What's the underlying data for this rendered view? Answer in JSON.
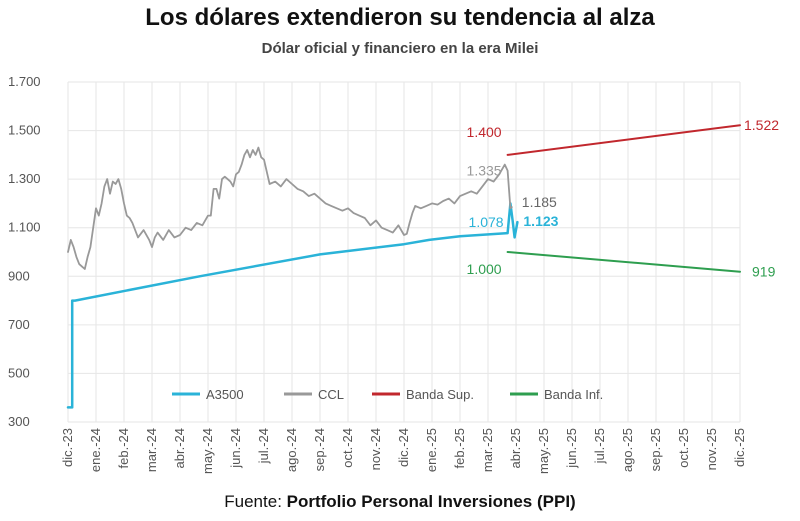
{
  "title": "Los dólares extendieron su tendencia al alza",
  "subtitle": "Dólar oficial y financiero en la era Milei",
  "source": {
    "prefix": "Fuente: ",
    "name": "Portfolio Personal Inversiones (PPI)"
  },
  "chart_data": {
    "type": "line",
    "title": "Los dólares extendieron su tendencia al alza",
    "subtitle": "Dólar oficial y financiero en la era Milei",
    "ylim": [
      300,
      1700
    ],
    "yticks": [
      300,
      500,
      700,
      900,
      1100,
      1300,
      1500,
      1700
    ],
    "ytick_labels": [
      "300",
      "500",
      "700",
      "900",
      "1.100",
      "1.300",
      "1.500",
      "1.700"
    ],
    "x_categories": [
      "dic.-23",
      "ene.-24",
      "feb.-24",
      "mar.-24",
      "abr.-24",
      "may.-24",
      "jun.-24",
      "jul.-24",
      "ago.-24",
      "sep.-24",
      "oct.-24",
      "nov.-24",
      "dic.-24",
      "ene.-25",
      "feb.-25",
      "mar.-25",
      "abr.-25",
      "may.-25",
      "jun.-25",
      "jul.-25",
      "ago.-25",
      "sep.-25",
      "oct.-25",
      "nov.-25",
      "dic.-25"
    ],
    "grid": true,
    "legend_position": "bottom-center",
    "series": [
      {
        "name": "A3500",
        "color": "#2ab3d8",
        "width": 2.5,
        "x": [
          0,
          0.15,
          0.15,
          0.25,
          4.7,
          9.0,
          12.0,
          12.9,
          14.0,
          15.7,
          15.8,
          15.88,
          15.95,
          16.05
        ],
        "y": [
          360,
          360,
          800,
          800,
          900,
          990,
          1032,
          1050,
          1065,
          1078,
          1200,
          1130,
          1060,
          1123
        ]
      },
      {
        "name": "CCL",
        "color": "#999999",
        "width": 1.8,
        "x": [
          0,
          0.1,
          0.2,
          0.3,
          0.4,
          0.5,
          0.6,
          0.7,
          0.8,
          0.9,
          1.0,
          1.1,
          1.2,
          1.3,
          1.4,
          1.5,
          1.6,
          1.7,
          1.8,
          1.9,
          2.0,
          2.1,
          2.2,
          2.3,
          2.5,
          2.7,
          2.9,
          3.0,
          3.1,
          3.2,
          3.4,
          3.6,
          3.8,
          4.0,
          4.2,
          4.4,
          4.6,
          4.8,
          5.0,
          5.1,
          5.2,
          5.3,
          5.4,
          5.5,
          5.6,
          5.7,
          5.8,
          5.9,
          6.0,
          6.1,
          6.2,
          6.3,
          6.4,
          6.5,
          6.6,
          6.7,
          6.8,
          6.9,
          7.0,
          7.2,
          7.4,
          7.6,
          7.8,
          8.0,
          8.2,
          8.4,
          8.6,
          8.8,
          9.0,
          9.2,
          9.4,
          9.6,
          9.8,
          10.0,
          10.2,
          10.4,
          10.6,
          10.8,
          11.0,
          11.2,
          11.4,
          11.6,
          11.8,
          12.0,
          12.1,
          12.2,
          12.3,
          12.4,
          12.6,
          12.8,
          13.0,
          13.2,
          13.4,
          13.6,
          13.8,
          14.0,
          14.2,
          14.4,
          14.6,
          14.8,
          15.0,
          15.2,
          15.4,
          15.5,
          15.6,
          15.7,
          15.8,
          15.85
        ],
        "y": [
          1000,
          1050,
          1020,
          980,
          950,
          940,
          930,
          980,
          1020,
          1100,
          1180,
          1150,
          1200,
          1270,
          1300,
          1240,
          1290,
          1280,
          1300,
          1260,
          1200,
          1150,
          1140,
          1120,
          1060,
          1090,
          1050,
          1020,
          1060,
          1080,
          1050,
          1090,
          1060,
          1070,
          1100,
          1090,
          1120,
          1110,
          1150,
          1150,
          1260,
          1260,
          1220,
          1300,
          1310,
          1300,
          1290,
          1270,
          1320,
          1330,
          1360,
          1400,
          1420,
          1390,
          1420,
          1400,
          1430,
          1390,
          1380,
          1280,
          1290,
          1270,
          1300,
          1280,
          1260,
          1250,
          1230,
          1240,
          1220,
          1200,
          1190,
          1180,
          1170,
          1180,
          1160,
          1150,
          1140,
          1110,
          1130,
          1100,
          1090,
          1080,
          1110,
          1070,
          1075,
          1120,
          1160,
          1190,
          1180,
          1190,
          1200,
          1195,
          1210,
          1220,
          1200,
          1230,
          1240,
          1250,
          1240,
          1270,
          1300,
          1290,
          1320,
          1340,
          1360,
          1335,
          1180,
          1185
        ]
      },
      {
        "name": "Banda Sup.",
        "color": "#c1272d",
        "width": 2,
        "x": [
          15.7,
          24.0
        ],
        "y": [
          1400,
          1522
        ]
      },
      {
        "name": "Banda Inf.",
        "color": "#2e9e4f",
        "width": 2,
        "x": [
          15.7,
          24.0
        ],
        "y": [
          1000,
          919
        ]
      }
    ],
    "annotations": [
      {
        "text": "1.400",
        "x": 15.7,
        "y": 1400,
        "color": "#c1272d",
        "bold": false
      },
      {
        "text": "1.522",
        "x": 24.0,
        "y": 1522,
        "color": "#c1272d",
        "bold": false
      },
      {
        "text": "1.335",
        "x": 15.7,
        "y": 1335,
        "color": "#999999",
        "bold": false
      },
      {
        "text": "1.185",
        "x": 15.85,
        "y": 1185,
        "color": "#666666",
        "bold": false
      },
      {
        "text": "1.078",
        "x": 15.7,
        "y": 1078,
        "color": "#2ab3d8",
        "bold": false
      },
      {
        "text": "1.123",
        "x": 16.05,
        "y": 1123,
        "color": "#2ab3d8",
        "bold": true
      },
      {
        "text": "1.000",
        "x": 15.7,
        "y": 1000,
        "color": "#2e9e4f",
        "bold": false
      },
      {
        "text": "919",
        "x": 24.0,
        "y": 919,
        "color": "#2e9e4f",
        "bold": false
      }
    ]
  }
}
